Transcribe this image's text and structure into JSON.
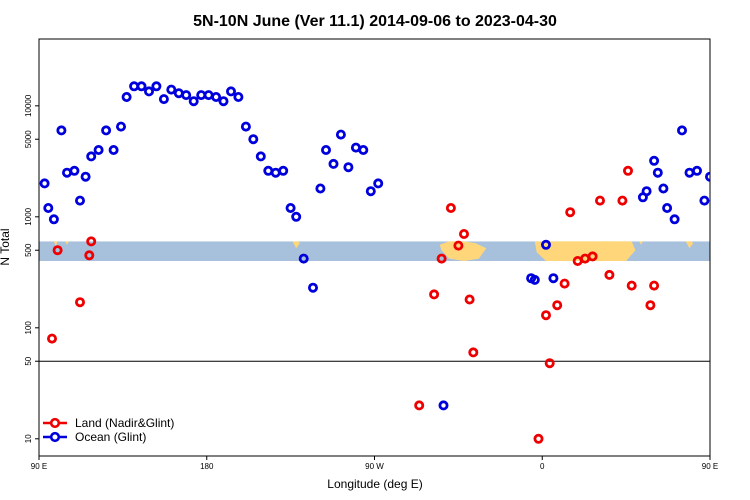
{
  "chart_data": {
    "type": "scatter",
    "title": "5N-10N June (Ver 11.1)   2014-09-06 to 2023-04-30",
    "xlabel": "Longitude (deg E)",
    "ylabel": "N Total",
    "y_scale": "log",
    "xlim": [
      90,
      450
    ],
    "ylim": [
      7,
      40000
    ],
    "x_ticks": [
      {
        "value": 90,
        "label": "90 E"
      },
      {
        "value": 180,
        "label": "180"
      },
      {
        "value": 270,
        "label": "90 W"
      },
      {
        "value": 360,
        "label": "0"
      },
      {
        "value": 450,
        "label": "90 E"
      },
      {
        "value": 540,
        "label": "180"
      }
    ],
    "y_ticks": [
      {
        "value": 10,
        "label": "10"
      },
      {
        "value": 50,
        "label": "50"
      },
      {
        "value": 100,
        "label": "100"
      },
      {
        "value": 500,
        "label": "500"
      },
      {
        "value": 1000,
        "label": "1000"
      },
      {
        "value": 5000,
        "label": "5000"
      },
      {
        "value": 10000,
        "label": "10000"
      }
    ],
    "reference_line": 50,
    "land_band": [
      400,
      600
    ],
    "colors": {
      "land": "#ee0000",
      "ocean": "#0000dd",
      "band": "#a7c0dc",
      "land_mask": "#ffd77a"
    },
    "legend": {
      "position": "bottom-left"
    },
    "series": [
      {
        "name": "Land (Nadir&Glint)",
        "color": "#ee0000",
        "points": [
          [
            97,
            80
          ],
          [
            100,
            500
          ],
          [
            112,
            170
          ],
          [
            117,
            450
          ],
          [
            118,
            600
          ],
          [
            294,
            20
          ],
          [
            302,
            200
          ],
          [
            306,
            420
          ],
          [
            311,
            1200
          ],
          [
            315,
            550
          ],
          [
            318,
            700
          ],
          [
            321,
            180
          ],
          [
            323,
            60
          ],
          [
            358,
            10
          ],
          [
            362,
            130
          ],
          [
            364,
            48
          ],
          [
            368,
            160
          ],
          [
            372,
            250
          ],
          [
            375,
            1100
          ],
          [
            379,
            400
          ],
          [
            383,
            420
          ],
          [
            387,
            440
          ],
          [
            391,
            1400
          ],
          [
            396,
            300
          ],
          [
            403,
            1400
          ],
          [
            406,
            2600
          ],
          [
            408,
            240
          ],
          [
            467,
            80
          ],
          [
            470,
            500
          ],
          [
            482,
            170
          ],
          [
            488,
            450
          ],
          [
            489,
            600
          ],
          [
            418,
            160
          ],
          [
            420,
            240
          ]
        ]
      },
      {
        "name": "Ocean (Glint)",
        "color": "#0000dd",
        "points": [
          [
            93,
            2000
          ],
          [
            95,
            1200
          ],
          [
            98,
            950
          ],
          [
            102,
            6000
          ],
          [
            105,
            2500
          ],
          [
            109,
            2600
          ],
          [
            112,
            1400
          ],
          [
            115,
            2300
          ],
          [
            118,
            3500
          ],
          [
            122,
            4000
          ],
          [
            126,
            6000
          ],
          [
            130,
            4000
          ],
          [
            134,
            6500
          ],
          [
            137,
            12000
          ],
          [
            141,
            15000
          ],
          [
            145,
            15000
          ],
          [
            149,
            13500
          ],
          [
            153,
            15000
          ],
          [
            157,
            11500
          ],
          [
            161,
            14000
          ],
          [
            165,
            13000
          ],
          [
            169,
            12500
          ],
          [
            173,
            11000
          ],
          [
            177,
            12500
          ],
          [
            181,
            12500
          ],
          [
            185,
            12000
          ],
          [
            189,
            11000
          ],
          [
            193,
            13500
          ],
          [
            197,
            12000
          ],
          [
            201,
            6500
          ],
          [
            205,
            5000
          ],
          [
            209,
            3500
          ],
          [
            213,
            2600
          ],
          [
            217,
            2500
          ],
          [
            221,
            2600
          ],
          [
            225,
            1200
          ],
          [
            228,
            1000
          ],
          [
            232,
            420
          ],
          [
            237,
            230
          ],
          [
            241,
            1800
          ],
          [
            244,
            4000
          ],
          [
            248,
            3000
          ],
          [
            252,
            5500
          ],
          [
            256,
            2800
          ],
          [
            260,
            4200
          ],
          [
            264,
            4000
          ],
          [
            268,
            1700
          ],
          [
            272,
            2000
          ],
          [
            354,
            280
          ],
          [
            356,
            270
          ],
          [
            362,
            560
          ],
          [
            366,
            280
          ],
          [
            425,
            1800
          ],
          [
            427,
            1200
          ],
          [
            431,
            950
          ],
          [
            435,
            6000
          ],
          [
            439,
            2500
          ],
          [
            443,
            2600
          ],
          [
            447,
            1400
          ],
          [
            450,
            2300
          ],
          [
            453,
            3500
          ],
          [
            457,
            4000
          ],
          [
            461,
            6000
          ],
          [
            465,
            4000
          ],
          [
            469,
            6500
          ],
          [
            473,
            12000
          ],
          [
            477,
            15000
          ],
          [
            481,
            15000
          ],
          [
            485,
            13500
          ],
          [
            489,
            15000
          ],
          [
            307,
            20
          ],
          [
            414,
            1500
          ],
          [
            416,
            1700
          ],
          [
            422,
            2500
          ],
          [
            420,
            3200
          ]
        ]
      }
    ]
  }
}
